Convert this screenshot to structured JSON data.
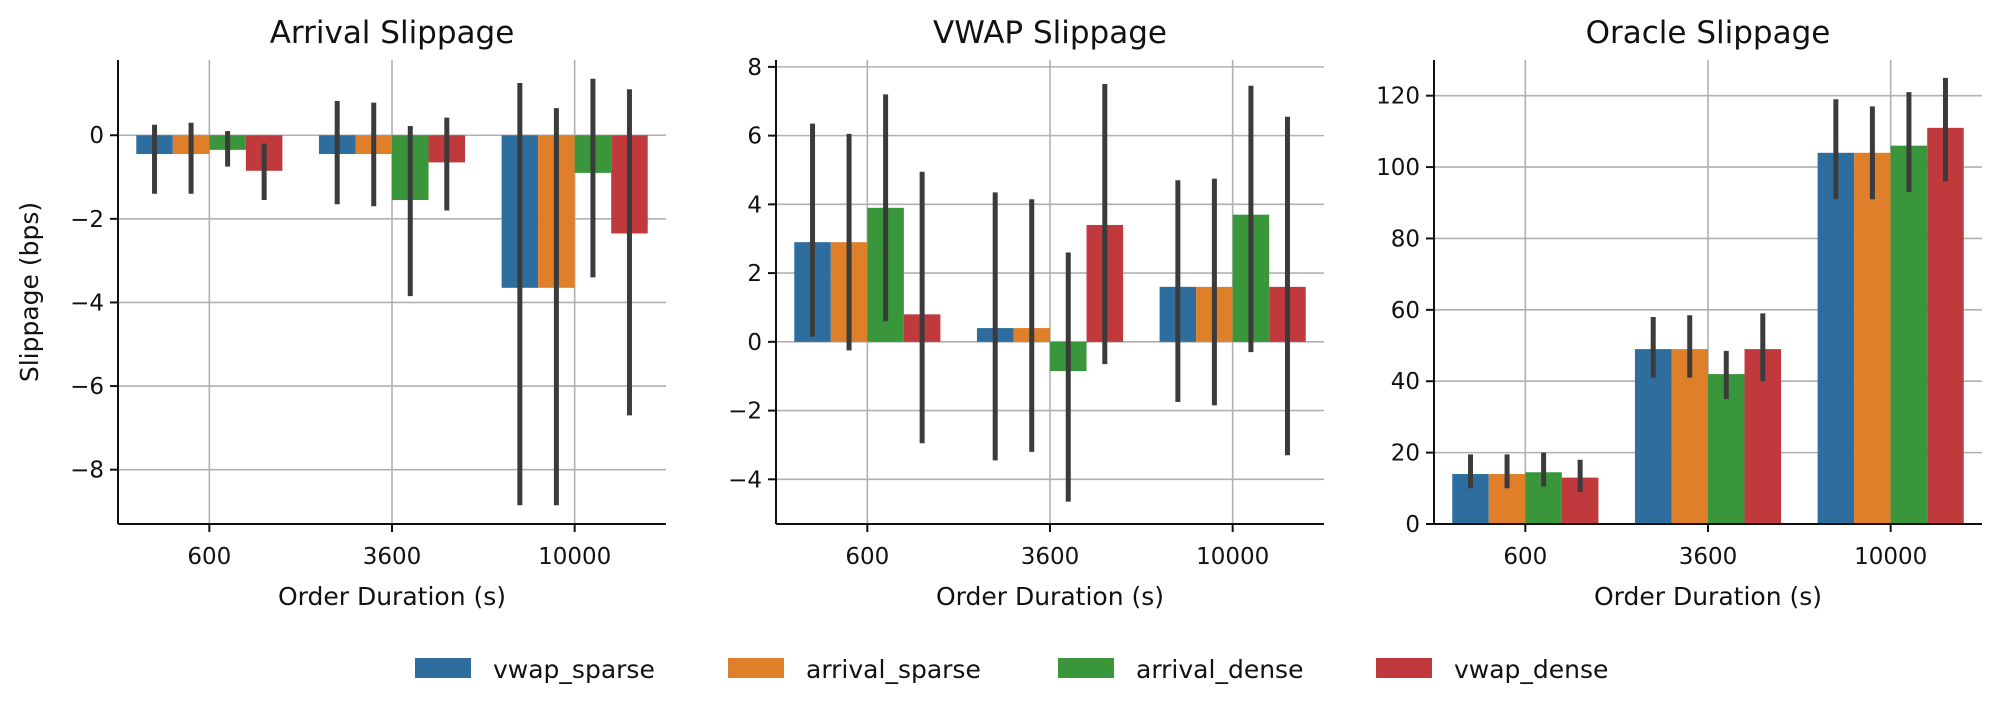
{
  "chart_data": [
    {
      "type": "bar",
      "title": "Arrival Slippage",
      "xlabel": "Order Duration (s)",
      "ylabel": "Slippage (bps)",
      "categories": [
        "600",
        "3600",
        "10000"
      ],
      "ylim": [
        -9.3,
        1.8
      ],
      "yticks": [
        0,
        -2,
        -4,
        -6,
        -8
      ],
      "ytick_labels": [
        "0",
        "−2",
        "−4",
        "−6",
        "−8"
      ],
      "grid": true,
      "series": [
        {
          "name": "vwap_sparse",
          "values": [
            -0.45,
            -0.45,
            -3.65
          ],
          "err_low": [
            -1.4,
            -1.65,
            -8.85
          ],
          "err_high": [
            0.25,
            0.82,
            1.25
          ]
        },
        {
          "name": "arrival_sparse",
          "values": [
            -0.45,
            -0.45,
            -3.65
          ],
          "err_low": [
            -1.4,
            -1.7,
            -8.85
          ],
          "err_high": [
            0.3,
            0.78,
            0.65
          ]
        },
        {
          "name": "arrival_dense",
          "values": [
            -0.35,
            -1.55,
            -0.9
          ],
          "err_low": [
            -0.75,
            -3.85,
            -3.4
          ],
          "err_high": [
            0.1,
            0.22,
            1.35
          ]
        },
        {
          "name": "vwap_dense",
          "values": [
            -0.85,
            -0.65,
            -2.35
          ],
          "err_low": [
            -1.55,
            -1.8,
            -6.7
          ],
          "err_high": [
            -0.2,
            0.42,
            1.1
          ]
        }
      ]
    },
    {
      "type": "bar",
      "title": "VWAP Slippage",
      "xlabel": "Order Duration (s)",
      "ylabel": "",
      "categories": [
        "600",
        "3600",
        "10000"
      ],
      "ylim": [
        -5.3,
        8.2
      ],
      "yticks": [
        8,
        6,
        4,
        2,
        0,
        -2,
        -4
      ],
      "ytick_labels": [
        "8",
        "6",
        "4",
        "2",
        "0",
        "−2",
        "−4"
      ],
      "grid": true,
      "series": [
        {
          "name": "vwap_sparse",
          "values": [
            2.9,
            0.4,
            1.6
          ],
          "err_low": [
            0.15,
            -3.45,
            -1.75
          ],
          "err_high": [
            6.35,
            4.35,
            4.7
          ]
        },
        {
          "name": "arrival_sparse",
          "values": [
            2.9,
            0.4,
            1.6
          ],
          "err_low": [
            -0.25,
            -3.2,
            -1.85
          ],
          "err_high": [
            6.05,
            4.15,
            4.75
          ]
        },
        {
          "name": "arrival_dense",
          "values": [
            3.9,
            -0.85,
            3.7
          ],
          "err_low": [
            0.6,
            -4.65,
            -0.3
          ],
          "err_high": [
            7.2,
            2.6,
            7.45
          ]
        },
        {
          "name": "vwap_dense",
          "values": [
            0.8,
            3.4,
            1.6
          ],
          "err_low": [
            -2.95,
            -0.65,
            -3.3
          ],
          "err_high": [
            4.95,
            7.5,
            6.55
          ]
        }
      ]
    },
    {
      "type": "bar",
      "title": "Oracle Slippage",
      "xlabel": "Order Duration (s)",
      "ylabel": "",
      "categories": [
        "600",
        "3600",
        "10000"
      ],
      "ylim": [
        0,
        130
      ],
      "yticks": [
        0,
        20,
        40,
        60,
        80,
        100,
        120
      ],
      "ytick_labels": [
        "0",
        "20",
        "40",
        "60",
        "80",
        "100",
        "120"
      ],
      "grid": true,
      "series": [
        {
          "name": "vwap_sparse",
          "values": [
            14,
            49,
            104
          ],
          "err_low": [
            10,
            41,
            91
          ],
          "err_high": [
            19.5,
            58,
            119
          ]
        },
        {
          "name": "arrival_sparse",
          "values": [
            14,
            49,
            104
          ],
          "err_low": [
            10,
            41,
            91
          ],
          "err_high": [
            19.5,
            58.5,
            117
          ]
        },
        {
          "name": "arrival_dense",
          "values": [
            14.5,
            42,
            106
          ],
          "err_low": [
            10.5,
            35,
            93
          ],
          "err_high": [
            20,
            48.5,
            121
          ]
        },
        {
          "name": "vwap_dense",
          "values": [
            13,
            49,
            111
          ],
          "err_low": [
            9,
            40,
            96
          ],
          "err_high": [
            18,
            59,
            125
          ]
        }
      ]
    }
  ],
  "legend": {
    "position": "bottom-center",
    "items": [
      {
        "label": "vwap_sparse",
        "color": "#2e6e9e"
      },
      {
        "label": "arrival_sparse",
        "color": "#e07f2a"
      },
      {
        "label": "arrival_dense",
        "color": "#3a963b"
      },
      {
        "label": "vwap_dense",
        "color": "#c0393c"
      }
    ]
  },
  "colors": {
    "error_bar": "#3b3b3b",
    "grid": "#b0b0b0",
    "axis": "#111111"
  }
}
